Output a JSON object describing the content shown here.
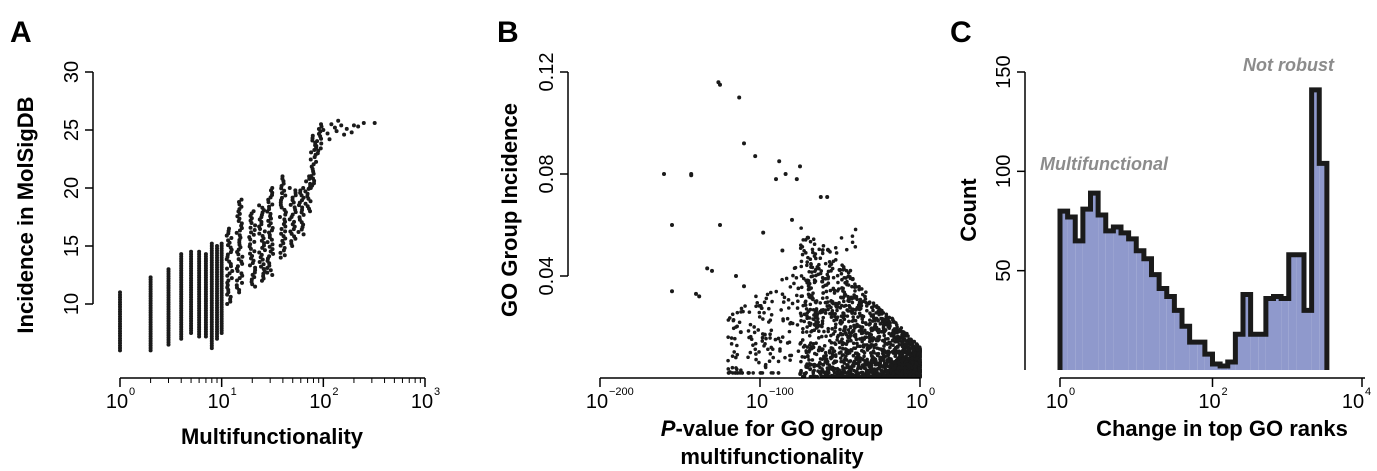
{
  "chart_data": [
    {
      "panel": "A",
      "type": "scatter",
      "xlabel": "Multifunctionality",
      "ylabel": "Incidence in MolSigDB",
      "x_scale": "log10",
      "x_ticks": [
        {
          "base": "10",
          "exp": "0"
        },
        {
          "base": "10",
          "exp": "1"
        },
        {
          "base": "10",
          "exp": "2"
        },
        {
          "base": "10",
          "exp": "3"
        }
      ],
      "xlim": [
        1,
        1000
      ],
      "ylim": [
        5,
        30
      ],
      "y_ticks": [
        "10",
        "15",
        "20",
        "25",
        "30"
      ],
      "color": "#1a1a1a",
      "columns": [
        {
          "x": 1,
          "ymin": 6,
          "ymax": 11
        },
        {
          "x": 2,
          "ymin": 6,
          "ymax": 12.3
        },
        {
          "x": 3,
          "ymin": 6.5,
          "ymax": 13
        },
        {
          "x": 4,
          "ymin": 7,
          "ymax": 14.3
        },
        {
          "x": 5,
          "ymin": 7.5,
          "ymax": 14.5
        },
        {
          "x": 6,
          "ymin": 7.2,
          "ymax": 14.5
        },
        {
          "x": 7,
          "ymin": 7.2,
          "ymax": 14.3
        },
        {
          "x": 8,
          "ymin": 6.2,
          "ymax": 15.2
        },
        {
          "x": 9,
          "ymin": 7,
          "ymax": 15
        },
        {
          "x": 10,
          "ymin": 7.5,
          "ymax": 15.2
        },
        {
          "x": 12,
          "ymin": 10,
          "ymax": 16.5
        },
        {
          "x": 15,
          "ymin": 11,
          "ymax": 19
        },
        {
          "x": 20,
          "ymin": 11.5,
          "ymax": 18
        },
        {
          "x": 25,
          "ymin": 12,
          "ymax": 18.5
        },
        {
          "x": 30,
          "ymin": 12.5,
          "ymax": 20
        },
        {
          "x": 40,
          "ymin": 14,
          "ymax": 21
        },
        {
          "x": 50,
          "ymin": 15,
          "ymax": 20
        },
        {
          "x": 60,
          "ymin": 16,
          "ymax": 20
        },
        {
          "x": 70,
          "ymin": 18,
          "ymax": 21
        },
        {
          "x": 80,
          "ymin": 20,
          "ymax": 24.5
        },
        {
          "x": 90,
          "ymin": 23,
          "ymax": 25.5
        }
      ],
      "points": [
        {
          "x": 100,
          "y": 25
        },
        {
          "x": 110,
          "y": 24.7
        },
        {
          "x": 120,
          "y": 25.5
        },
        {
          "x": 130,
          "y": 25.2
        },
        {
          "x": 140,
          "y": 25.8
        },
        {
          "x": 150,
          "y": 25.4
        },
        {
          "x": 160,
          "y": 24.6
        },
        {
          "x": 170,
          "y": 25.1
        },
        {
          "x": 190,
          "y": 24.8
        },
        {
          "x": 200,
          "y": 25.4
        },
        {
          "x": 220,
          "y": 25.3
        },
        {
          "x": 250,
          "y": 25.6
        },
        {
          "x": 320,
          "y": 25.6
        },
        {
          "x": 115,
          "y": 24.2
        },
        {
          "x": 135,
          "y": 24.9
        }
      ]
    },
    {
      "panel": "B",
      "type": "scatter",
      "xlabel_italic": "P",
      "xlabel": "-value for GO group",
      "xlabel_line2": "multifunctionality",
      "ylabel": "GO Group Incidence",
      "x_ticks": [
        {
          "base": "10",
          "exp": "−200"
        },
        {
          "base": "10",
          "exp": "−100"
        },
        {
          "base": "10",
          "exp": "0"
        }
      ],
      "xlim": [
        -200,
        0
      ],
      "ylim": [
        0,
        0.12
      ],
      "y_ticks": [
        "0.04",
        "0.08",
        "0.12"
      ],
      "color": "#1a1a1a",
      "n_points_dense": 2000,
      "points": [
        {
          "x": -126,
          "y": 0.116
        },
        {
          "x": -125,
          "y": 0.115
        },
        {
          "x": -113,
          "y": 0.11
        },
        {
          "x": -110,
          "y": 0.092
        },
        {
          "x": -88,
          "y": 0.085
        },
        {
          "x": -160,
          "y": 0.08
        },
        {
          "x": -143,
          "y": 0.08
        },
        {
          "x": -143,
          "y": 0.0795
        },
        {
          "x": -75,
          "y": 0.083
        },
        {
          "x": -77,
          "y": 0.078
        },
        {
          "x": -84,
          "y": 0.08
        },
        {
          "x": -90,
          "y": 0.078
        },
        {
          "x": -103,
          "y": 0.087
        },
        {
          "x": -155,
          "y": 0.06
        },
        {
          "x": -125,
          "y": 0.06
        },
        {
          "x": -140,
          "y": 0.033
        },
        {
          "x": -138,
          "y": 0.032
        },
        {
          "x": -155,
          "y": 0.034
        },
        {
          "x": -115,
          "y": 0.04
        },
        {
          "x": -110,
          "y": 0.036
        },
        {
          "x": -112,
          "y": 0.018
        },
        {
          "x": -97,
          "y": 0.017
        },
        {
          "x": -62,
          "y": 0.071
        },
        {
          "x": -58,
          "y": 0.071
        },
        {
          "x": -98,
          "y": 0.057
        },
        {
          "x": -86,
          "y": 0.05
        },
        {
          "x": -130,
          "y": 0.042
        },
        {
          "x": -133,
          "y": 0.043
        },
        {
          "x": -80,
          "y": 0.062
        },
        {
          "x": -70,
          "y": 0.055
        }
      ]
    },
    {
      "panel": "C",
      "type": "bar",
      "xlabel": "Change in top GO ranks",
      "ylabel": "Count",
      "x_scale": "log10",
      "x_ticks": [
        {
          "base": "10",
          "exp": "0"
        },
        {
          "base": "10",
          "exp": "2"
        },
        {
          "base": "10",
          "exp": "4"
        }
      ],
      "xlim": [
        0,
        4
      ],
      "ylim": [
        0,
        150
      ],
      "y_ticks": [
        "50",
        "100",
        "150"
      ],
      "fill": "#8f99cc",
      "stroke": "#1a1a1a",
      "bin_width_log10": 0.1,
      "bin_start_log10": 0.0,
      "values": [
        80,
        77,
        65,
        81,
        89,
        78,
        70,
        72,
        69,
        66,
        60,
        56,
        48,
        41,
        37,
        30,
        22,
        14,
        14,
        8,
        3,
        2,
        4,
        18,
        38,
        18,
        18,
        36,
        37,
        36,
        58,
        58,
        30,
        141,
        104
      ],
      "annotations": [
        "Multifunctional",
        "Not robust"
      ]
    }
  ]
}
